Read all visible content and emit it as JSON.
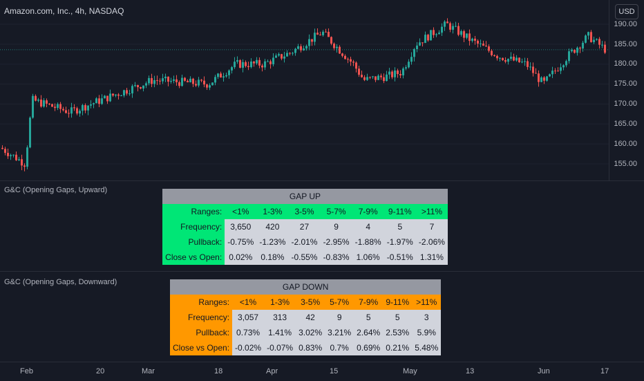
{
  "chart": {
    "title": "Amazon.com, Inc., 4h, NASDAQ",
    "currency": "USD",
    "price_ticks": [
      "190.00",
      "185.00",
      "180.00",
      "175.00",
      "170.00",
      "165.00",
      "160.00",
      "155.00"
    ],
    "time_ticks": [
      "Feb",
      "20",
      "Mar",
      "18",
      "Apr",
      "15",
      "May",
      "13",
      "Jun",
      "17"
    ],
    "colors": {
      "up": "#26a69a",
      "down": "#ef5350",
      "background": "#161a25"
    }
  },
  "gap_up": {
    "pane_title": "G&C (Opening Gaps, Upward)",
    "header": "GAP UP",
    "ranges_label": "Ranges:",
    "ranges": [
      "<1%",
      "1-3%",
      "3-5%",
      "5-7%",
      "7-9%",
      "9-11%",
      ">11%"
    ],
    "rows": [
      {
        "label": "Frequency:",
        "values": [
          "3,650",
          "420",
          "27",
          "9",
          "4",
          "5",
          "7"
        ]
      },
      {
        "label": "Pullback:",
        "values": [
          "-0.75%",
          "-1.23%",
          "-2.01%",
          "-2.95%",
          "-1.88%",
          "-1.97%",
          "-2.06%"
        ]
      },
      {
        "label": "Close vs Open:",
        "values": [
          "0.02%",
          "0.18%",
          "-0.55%",
          "-0.83%",
          "1.06%",
          "-0.51%",
          "1.31%"
        ]
      }
    ],
    "accent": "#00e676"
  },
  "gap_down": {
    "pane_title": "G&C (Opening Gaps, Downward)",
    "header": "GAP DOWN",
    "ranges_label": "Ranges:",
    "ranges": [
      "<1%",
      "1-3%",
      "3-5%",
      "5-7%",
      "7-9%",
      "9-11%",
      ">11%"
    ],
    "rows": [
      {
        "label": "Frequency:",
        "values": [
          "3,057",
          "313",
          "42",
          "9",
          "5",
          "5",
          "3"
        ]
      },
      {
        "label": "Pullback:",
        "values": [
          "0.73%",
          "1.41%",
          "3.02%",
          "3.21%",
          "2.64%",
          "2.53%",
          "5.9%"
        ]
      },
      {
        "label": "Close vs Open:",
        "values": [
          "-0.02%",
          "-0.07%",
          "0.83%",
          "0.7%",
          "0.69%",
          "0.21%",
          "5.48%"
        ]
      }
    ],
    "accent": "#ff9800"
  }
}
